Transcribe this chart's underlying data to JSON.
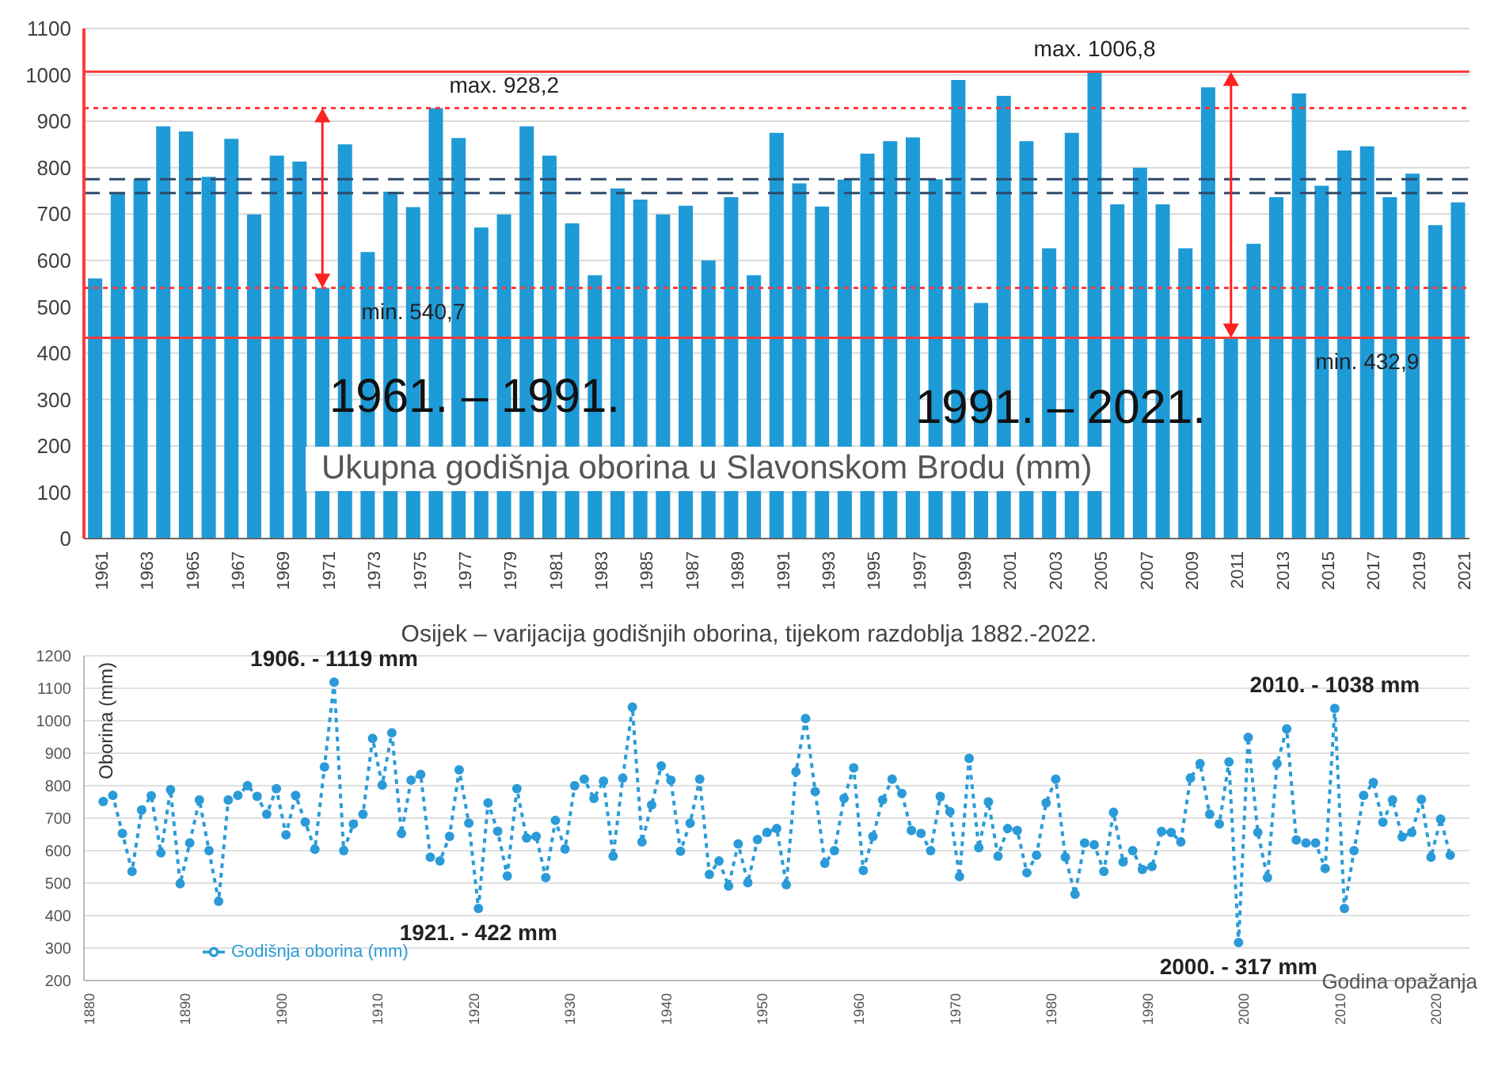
{
  "chart_data": [
    {
      "type": "bar",
      "title": "Ukupna godišnja oborina u Slavonskom Brodu (mm)",
      "categories": [
        "1961",
        null,
        "1963",
        null,
        "1965",
        null,
        "1967",
        null,
        "1969",
        null,
        "1971",
        null,
        "1973",
        null,
        "1975",
        null,
        "1977",
        null,
        "1979",
        null,
        "1981",
        null,
        "1983",
        null,
        "1985",
        null,
        "1987",
        null,
        "1989",
        null,
        "1991",
        null,
        "1993",
        null,
        "1995",
        null,
        "1997",
        null,
        "1999",
        null,
        "2001",
        null,
        "2003",
        null,
        "2005",
        null,
        "2007",
        null,
        "2009",
        null,
        "2011",
        null,
        "2013",
        null,
        "2015",
        null,
        "2017",
        null,
        "2019",
        null,
        "2021"
      ],
      "values": [
        561,
        745,
        775,
        889,
        878,
        780,
        862,
        699,
        826,
        813,
        540.7,
        850,
        618,
        748,
        715,
        928.2,
        864,
        671,
        699,
        889,
        826,
        680,
        568,
        755,
        731,
        699,
        718,
        600,
        736,
        568,
        875,
        766,
        716,
        774,
        830,
        857,
        865,
        775,
        989,
        508,
        955,
        857,
        626,
        875,
        1006.8,
        721,
        800,
        721,
        626,
        973,
        432.9,
        636,
        736,
        960,
        761,
        837,
        846,
        736,
        787,
        676,
        725
      ],
      "color": "#1e9ad6",
      "ylim": [
        0,
        1100
      ],
      "yticks": [
        0,
        100,
        200,
        300,
        400,
        500,
        600,
        700,
        800,
        900,
        1000,
        1100
      ],
      "grid": "y",
      "ref_lines": [
        {
          "axis": "y",
          "value": 745,
          "color": "#2f4a6a",
          "line_style": "dashed"
        },
        {
          "axis": "y",
          "value": 775,
          "color": "#2f4a6a",
          "line_style": "dashed"
        },
        {
          "axis": "y",
          "value": 928.2,
          "color": "#ff3b3b",
          "line_style": "dotted"
        },
        {
          "axis": "y",
          "value": 540.7,
          "color": "#ff3b3b",
          "line_style": "dotted"
        },
        {
          "axis": "y",
          "value": 1006.8,
          "color": "#ff3b3b",
          "line_style": "solid"
        },
        {
          "axis": "y",
          "value": 432.9,
          "color": "#ff3b3b",
          "line_style": "solid"
        }
      ],
      "annotations": [
        {
          "text": "max. 928,2",
          "x": "1979",
          "y": 928.2
        },
        {
          "text": "min. 540,7",
          "x": "1975",
          "y": 540.7
        },
        {
          "text": "max. 1006,8",
          "x": "2005",
          "y": 1006.8
        },
        {
          "text": "min. 432,9",
          "x": "2017",
          "y": 432.9
        },
        "1961. – 1991.",
        "1991. – 2021."
      ]
    },
    {
      "type": "line",
      "title": "Osijek – varijacija godišnjih oborina, tijekom razdoblja 1882.-2022.",
      "xlabel": "Godina opažanja",
      "ylabel": "Oborina (mm)",
      "x": [
        1882,
        1883,
        1884,
        1885,
        1886,
        1887,
        1888,
        1889,
        1890,
        1891,
        1892,
        1893,
        1894,
        1895,
        1896,
        1897,
        1898,
        1899,
        1900,
        1901,
        1902,
        1903,
        1904,
        1905,
        1906,
        1907,
        1908,
        1909,
        1910,
        1911,
        1912,
        1913,
        1914,
        1915,
        1916,
        1917,
        1918,
        1919,
        1920,
        1921,
        1922,
        1923,
        1924,
        1925,
        1926,
        1927,
        1928,
        1929,
        1930,
        1931,
        1932,
        1933,
        1934,
        1935,
        1936,
        1937,
        1938,
        1939,
        1940,
        1941,
        1942,
        1943,
        1944,
        1945,
        1946,
        1947,
        1948,
        1949,
        1950,
        1951,
        1952,
        1953,
        1954,
        1955,
        1956,
        1957,
        1958,
        1959,
        1960,
        1961,
        1962,
        1963,
        1964,
        1965,
        1966,
        1967,
        1968,
        1969,
        1970,
        1971,
        1972,
        1973,
        1974,
        1975,
        1976,
        1977,
        1978,
        1979,
        1980,
        1981,
        1982,
        1983,
        1984,
        1985,
        1986,
        1987,
        1988,
        1989,
        1990,
        1991,
        1992,
        1993,
        1994,
        1995,
        1996,
        1997,
        1998,
        1999,
        2000,
        2001,
        2002,
        2003,
        2004,
        2005,
        2006,
        2007,
        2008,
        2009,
        2010,
        2011,
        2012,
        2013,
        2014,
        2015,
        2016,
        2017,
        2018,
        2019,
        2020,
        2021,
        2022
      ],
      "series": [
        {
          "name": "Godišnja oborina (mm)",
          "color": "#2a9bd8",
          "values": [
            751,
            770,
            653,
            536,
            725,
            769,
            593,
            788,
            498,
            624,
            756,
            600,
            444,
            756,
            770,
            800,
            767,
            712,
            791,
            649,
            770,
            688,
            604,
            858,
            1119,
            600,
            682,
            712,
            946,
            802,
            963,
            653,
            817,
            835,
            580,
            568,
            644,
            849,
            685,
            422,
            747,
            660,
            522,
            791,
            639,
            644,
            517,
            693,
            605,
            800,
            820,
            761,
            814,
            583,
            823,
            1042,
            627,
            741,
            861,
            817,
            598,
            685,
            820,
            527,
            568,
            491,
            621,
            501,
            634,
            656,
            668,
            495,
            843,
            1007,
            782,
            561,
            600,
            761,
            855,
            539,
            644,
            756,
            820,
            776,
            662,
            653,
            600,
            767,
            720,
            520,
            884,
            609,
            750,
            583,
            668,
            662,
            532,
            586,
            747,
            820,
            580,
            466,
            624,
            618,
            536,
            718,
            565,
            600,
            542,
            551,
            659,
            656,
            627,
            824,
            868,
            712,
            682,
            873,
            317,
            949,
            656,
            517,
            868,
            975,
            633,
            624,
            624,
            545,
            1038,
            422,
            600,
            770,
            810,
            688,
            756,
            642,
            656,
            758,
            580,
            697,
            586
          ]
        }
      ],
      "xlim": [
        1880,
        2024
      ],
      "xticks": [
        1880,
        1890,
        1900,
        1910,
        1920,
        1930,
        1940,
        1950,
        1960,
        1970,
        1980,
        1990,
        2000,
        2010,
        2020
      ],
      "ylim": [
        200,
        1200
      ],
      "yticks": [
        200,
        300,
        400,
        500,
        600,
        700,
        800,
        900,
        1000,
        1100,
        1200
      ],
      "grid": "y",
      "legend": "bottom left",
      "marker": "circle",
      "line_style": "dotted",
      "annotations": [
        {
          "text": "1906. - 1119 mm",
          "x": 1906,
          "y": 1119
        },
        {
          "text": "1921. - 422 mm",
          "x": 1921,
          "y": 422
        },
        {
          "text": "2000. - 317 mm",
          "x": 2000,
          "y": 317
        },
        {
          "text": "2010. - 1038 mm",
          "x": 2010,
          "y": 1038
        }
      ]
    }
  ]
}
